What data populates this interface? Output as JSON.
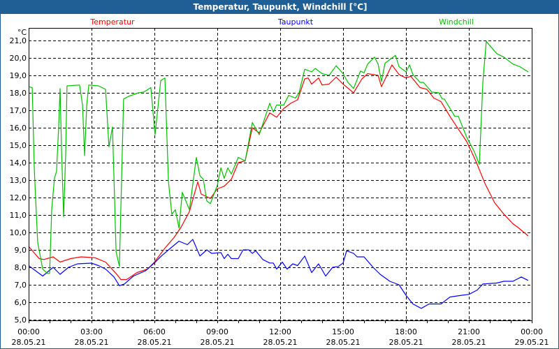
{
  "window": {
    "title": "Temperatur, Taupunkt, Windchill [°C]"
  },
  "chart_data": {
    "type": "line",
    "title": "Temperatur, Taupunkt, Windchill [°C]",
    "ylabel": "°C",
    "xlabel": "",
    "ylim": [
      5.0,
      21.7
    ],
    "xlim_hours": [
      0,
      24
    ],
    "grid": true,
    "legend_placement": "top",
    "y_ticks": [
      "5,0",
      "6,0",
      "7,0",
      "8,0",
      "9,0",
      "10,0",
      "11,0",
      "12,0",
      "13,0",
      "14,0",
      "15,0",
      "16,0",
      "17,0",
      "18,0",
      "19,0",
      "20,0",
      "21,0"
    ],
    "x_ticks": [
      {
        "time": "00:00",
        "date": "28.05.21"
      },
      {
        "time": "03:00",
        "date": "28.05.21"
      },
      {
        "time": "06:00",
        "date": "28.05.21"
      },
      {
        "time": "09:00",
        "date": "28.05.21"
      },
      {
        "time": "12:00",
        "date": "28.05.21"
      },
      {
        "time": "15:00",
        "date": "28.05.21"
      },
      {
        "time": "18:00",
        "date": "28.05.21"
      },
      {
        "time": "21:00",
        "date": "28.05.21"
      },
      {
        "time": "00:00",
        "date": "29.05.21"
      }
    ],
    "series": [
      {
        "name": "Temperatur",
        "color": "#ff0000",
        "points": [
          [
            0,
            9.2
          ],
          [
            0.5,
            8.5
          ],
          [
            0.73,
            8.45
          ],
          [
            1.17,
            8.6
          ],
          [
            1.5,
            8.3
          ],
          [
            2,
            8.5
          ],
          [
            2.5,
            8.6
          ],
          [
            3.17,
            8.55
          ],
          [
            3.67,
            8.3
          ],
          [
            4.17,
            7.65
          ],
          [
            4.4,
            7.3
          ],
          [
            4.67,
            7.3
          ],
          [
            5.17,
            7.7
          ],
          [
            5.67,
            7.9
          ],
          [
            6,
            8.3
          ],
          [
            6.5,
            9.1
          ],
          [
            6.93,
            9.7
          ],
          [
            7.27,
            10.3
          ],
          [
            7.67,
            11.2
          ],
          [
            8.07,
            12.9
          ],
          [
            8.23,
            12.2
          ],
          [
            8.67,
            11.95
          ],
          [
            9,
            12.5
          ],
          [
            9.33,
            12.65
          ],
          [
            9.67,
            13.05
          ],
          [
            10,
            14.0
          ],
          [
            10.33,
            14.1
          ],
          [
            10.67,
            16.0
          ],
          [
            11,
            15.7
          ],
          [
            11.5,
            16.85
          ],
          [
            11.83,
            16.6
          ],
          [
            12.17,
            17.1
          ],
          [
            12.5,
            17.4
          ],
          [
            12.83,
            17.6
          ],
          [
            13.17,
            18.8
          ],
          [
            13.33,
            18.85
          ],
          [
            13.5,
            18.5
          ],
          [
            13.83,
            18.85
          ],
          [
            14,
            18.45
          ],
          [
            14.33,
            18.5
          ],
          [
            14.67,
            18.9
          ],
          [
            15,
            18.5
          ],
          [
            15.5,
            18.0
          ],
          [
            15.9,
            18.8
          ],
          [
            16.17,
            19.1
          ],
          [
            16.67,
            19.0
          ],
          [
            16.83,
            18.35
          ],
          [
            17.33,
            19.6
          ],
          [
            17.67,
            19.05
          ],
          [
            18,
            18.85
          ],
          [
            18.23,
            18.95
          ],
          [
            18.67,
            18.3
          ],
          [
            19,
            18.2
          ],
          [
            19.33,
            17.7
          ],
          [
            19.67,
            17.5
          ],
          [
            20.1,
            16.65
          ],
          [
            20.43,
            16.05
          ],
          [
            20.9,
            15.2
          ],
          [
            21.33,
            14.1
          ],
          [
            21.77,
            12.8
          ],
          [
            22.23,
            11.7
          ],
          [
            22.67,
            11.05
          ],
          [
            23.1,
            10.5
          ],
          [
            23.33,
            10.3
          ],
          [
            23.83,
            9.8
          ]
        ]
      },
      {
        "name": "Taupunkt",
        "color": "#0000ff",
        "points": [
          [
            0,
            8.1
          ],
          [
            0.67,
            7.5
          ],
          [
            1.17,
            8.0
          ],
          [
            1.5,
            7.6
          ],
          [
            1.9,
            8.0
          ],
          [
            2.33,
            8.2
          ],
          [
            3,
            8.24
          ],
          [
            3.33,
            8.1
          ],
          [
            3.67,
            7.9
          ],
          [
            4.07,
            7.45
          ],
          [
            4.33,
            6.95
          ],
          [
            4.57,
            7.05
          ],
          [
            5,
            7.5
          ],
          [
            5.57,
            7.8
          ],
          [
            6,
            8.25
          ],
          [
            6.33,
            8.65
          ],
          [
            6.77,
            9.1
          ],
          [
            7.17,
            9.5
          ],
          [
            7.57,
            9.3
          ],
          [
            7.83,
            9.6
          ],
          [
            8.17,
            8.65
          ],
          [
            8.5,
            9.0
          ],
          [
            8.73,
            8.8
          ],
          [
            9.17,
            8.85
          ],
          [
            9.33,
            8.5
          ],
          [
            9.5,
            8.75
          ],
          [
            9.67,
            8.5
          ],
          [
            10,
            8.5
          ],
          [
            10.23,
            9.0
          ],
          [
            10.5,
            9.0
          ],
          [
            10.67,
            8.8
          ],
          [
            10.83,
            8.95
          ],
          [
            11.17,
            8.45
          ],
          [
            11.5,
            8.25
          ],
          [
            11.67,
            8.25
          ],
          [
            11.83,
            7.9
          ],
          [
            12.1,
            8.3
          ],
          [
            12.33,
            7.9
          ],
          [
            12.6,
            8.2
          ],
          [
            12.83,
            8.1
          ],
          [
            13.17,
            8.65
          ],
          [
            13.5,
            7.7
          ],
          [
            13.83,
            8.2
          ],
          [
            14.17,
            7.5
          ],
          [
            14.5,
            8.0
          ],
          [
            14.77,
            8.05
          ],
          [
            15,
            8.25
          ],
          [
            15.17,
            8.95
          ],
          [
            15.5,
            8.8
          ],
          [
            15.67,
            8.6
          ],
          [
            16,
            8.6
          ],
          [
            16.43,
            8.0
          ],
          [
            16.77,
            7.6
          ],
          [
            17.23,
            7.2
          ],
          [
            17.67,
            7.0
          ],
          [
            18,
            6.4
          ],
          [
            18.33,
            5.9
          ],
          [
            18.73,
            5.65
          ],
          [
            19.1,
            5.9
          ],
          [
            19.67,
            5.9
          ],
          [
            20.1,
            6.3
          ],
          [
            20.67,
            6.4
          ],
          [
            21,
            6.45
          ],
          [
            21.4,
            6.7
          ],
          [
            21.67,
            7.05
          ],
          [
            22.33,
            7.1
          ],
          [
            22.67,
            7.2
          ],
          [
            23.1,
            7.2
          ],
          [
            23.5,
            7.45
          ],
          [
            23.83,
            7.25
          ]
        ]
      },
      {
        "name": "Windchill",
        "color": "#00c000",
        "points": [
          [
            0,
            18.35
          ],
          [
            0.17,
            18.3
          ],
          [
            0.27,
            13.6
          ],
          [
            0.43,
            9.45
          ],
          [
            0.67,
            7.9
          ],
          [
            0.9,
            7.65
          ],
          [
            1,
            7.65
          ],
          [
            1.1,
            11.3
          ],
          [
            1.23,
            13.1
          ],
          [
            1.33,
            13.5
          ],
          [
            1.43,
            16.0
          ],
          [
            1.5,
            18.25
          ],
          [
            1.57,
            14.65
          ],
          [
            1.67,
            10.9
          ],
          [
            1.77,
            14.65
          ],
          [
            1.83,
            18.4
          ],
          [
            2.43,
            18.45
          ],
          [
            2.57,
            17.3
          ],
          [
            2.67,
            14.4
          ],
          [
            2.77,
            17.3
          ],
          [
            2.87,
            18.45
          ],
          [
            3.33,
            18.4
          ],
          [
            3.67,
            18.2
          ],
          [
            3.83,
            14.9
          ],
          [
            4,
            16.05
          ],
          [
            4.17,
            8.9
          ],
          [
            4.33,
            8.05
          ],
          [
            4.43,
            12.9
          ],
          [
            4.53,
            17.65
          ],
          [
            4.77,
            17.8
          ],
          [
            5.23,
            18.0
          ],
          [
            5.5,
            18.05
          ],
          [
            5.83,
            18.3
          ],
          [
            6.03,
            15.6
          ],
          [
            6.3,
            18.7
          ],
          [
            6.5,
            18.85
          ],
          [
            6.67,
            12.9
          ],
          [
            6.83,
            11.05
          ],
          [
            7,
            11.3
          ],
          [
            7.17,
            10.25
          ],
          [
            7.33,
            12.3
          ],
          [
            7.67,
            11.3
          ],
          [
            8,
            14.3
          ],
          [
            8.17,
            13.25
          ],
          [
            8.33,
            13.05
          ],
          [
            8.5,
            11.8
          ],
          [
            8.67,
            11.65
          ],
          [
            9,
            12.7
          ],
          [
            9.17,
            13.7
          ],
          [
            9.33,
            13.1
          ],
          [
            9.5,
            13.7
          ],
          [
            9.67,
            13.35
          ],
          [
            10,
            14.3
          ],
          [
            10.33,
            14.1
          ],
          [
            10.67,
            16.3
          ],
          [
            11,
            15.6
          ],
          [
            11.5,
            17.4
          ],
          [
            11.67,
            16.9
          ],
          [
            11.83,
            17.3
          ],
          [
            12.17,
            17.3
          ],
          [
            12.4,
            17.85
          ],
          [
            12.73,
            17.7
          ],
          [
            12.9,
            18.0
          ],
          [
            13.17,
            19.35
          ],
          [
            13.5,
            19.2
          ],
          [
            13.67,
            19.4
          ],
          [
            14,
            19.1
          ],
          [
            14.33,
            19.0
          ],
          [
            14.67,
            19.55
          ],
          [
            15,
            19.1
          ],
          [
            15.23,
            18.6
          ],
          [
            15.5,
            18.25
          ],
          [
            15.83,
            19.25
          ],
          [
            16,
            19.15
          ],
          [
            16.17,
            19.65
          ],
          [
            16.5,
            20.05
          ],
          [
            16.67,
            19.65
          ],
          [
            16.83,
            18.65
          ],
          [
            17,
            19.7
          ],
          [
            17.5,
            20.15
          ],
          [
            17.67,
            19.5
          ],
          [
            18,
            19.2
          ],
          [
            18.17,
            19.6
          ],
          [
            18.33,
            19.05
          ],
          [
            18.67,
            18.6
          ],
          [
            18.83,
            18.6
          ],
          [
            19.23,
            18.05
          ],
          [
            19.57,
            18.0
          ],
          [
            19.73,
            17.65
          ],
          [
            19.83,
            17.65
          ],
          [
            20.33,
            16.65
          ],
          [
            20.5,
            16.65
          ],
          [
            20.9,
            15.45
          ],
          [
            21.27,
            14.6
          ],
          [
            21.5,
            13.9
          ],
          [
            21.67,
            18.65
          ],
          [
            21.83,
            20.95
          ],
          [
            22.33,
            20.25
          ],
          [
            22.67,
            20.05
          ],
          [
            23.1,
            19.65
          ],
          [
            23.43,
            19.5
          ],
          [
            23.83,
            19.2
          ]
        ]
      }
    ]
  }
}
